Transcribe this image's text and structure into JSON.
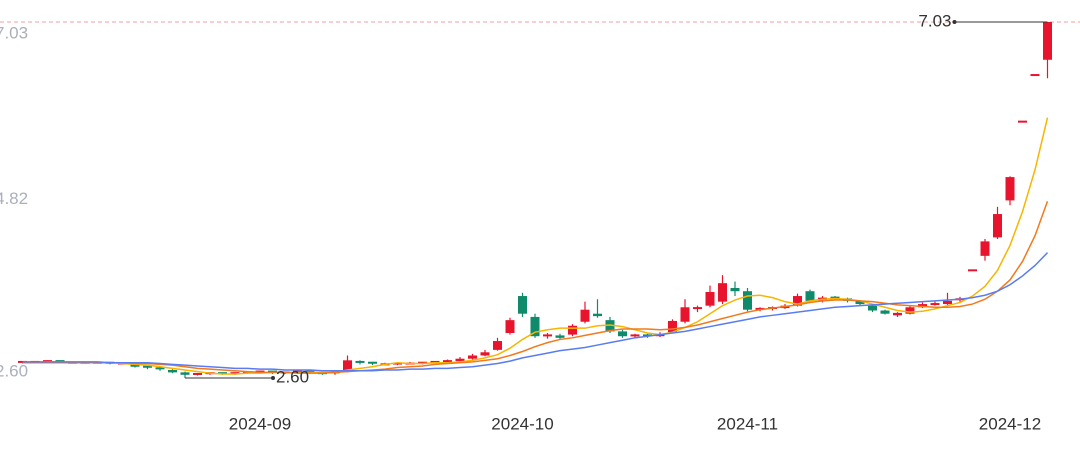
{
  "chart_data": {
    "type": "candlestick",
    "categories": [
      null,
      null,
      null,
      null,
      null,
      null,
      null,
      null,
      null,
      null,
      null,
      null,
      null,
      null,
      null,
      null,
      null,
      null,
      null,
      "2024-09",
      null,
      null,
      null,
      null,
      null,
      null,
      null,
      null,
      null,
      null,
      null,
      null,
      null,
      null,
      null,
      null,
      null,
      null,
      null,
      null,
      "2024-10",
      null,
      null,
      null,
      null,
      null,
      null,
      null,
      null,
      null,
      null,
      null,
      null,
      null,
      null,
      null,
      null,
      null,
      "2024-11",
      null,
      null,
      null,
      null,
      null,
      null,
      null,
      null,
      null,
      null,
      null,
      null,
      null,
      null,
      null,
      null,
      null,
      null,
      null,
      null,
      "2024-12",
      null,
      null,
      null
    ],
    "candles": [
      [
        2.79,
        2.81,
        2.78,
        2.8
      ],
      [
        2.8,
        2.81,
        2.79,
        2.8
      ],
      [
        2.8,
        2.82,
        2.79,
        2.81
      ],
      [
        2.81,
        2.82,
        2.79,
        2.79
      ],
      [
        2.79,
        2.8,
        2.78,
        2.78
      ],
      [
        2.78,
        2.8,
        2.78,
        2.79
      ],
      [
        2.79,
        2.8,
        2.78,
        2.79
      ],
      [
        2.79,
        2.8,
        2.77,
        2.78
      ],
      [
        2.78,
        2.79,
        2.77,
        2.78
      ],
      [
        2.78,
        2.78,
        2.73,
        2.74
      ],
      [
        2.74,
        2.75,
        2.71,
        2.72
      ],
      [
        2.72,
        2.73,
        2.69,
        2.7
      ],
      [
        2.7,
        2.71,
        2.66,
        2.67
      ],
      [
        2.67,
        2.68,
        2.6,
        2.64
      ],
      [
        2.64,
        2.66,
        2.63,
        2.65
      ],
      [
        2.65,
        2.67,
        2.64,
        2.66
      ],
      [
        2.66,
        2.67,
        2.64,
        2.65
      ],
      [
        2.65,
        2.67,
        2.64,
        2.66
      ],
      [
        2.66,
        2.68,
        2.65,
        2.67
      ],
      [
        2.67,
        2.69,
        2.66,
        2.68
      ],
      [
        2.68,
        2.69,
        2.65,
        2.66
      ],
      [
        2.66,
        2.68,
        2.65,
        2.67
      ],
      [
        2.67,
        2.7,
        2.66,
        2.68
      ],
      [
        2.68,
        2.69,
        2.65,
        2.66
      ],
      [
        2.66,
        2.67,
        2.64,
        2.65
      ],
      [
        2.65,
        2.68,
        2.64,
        2.67
      ],
      [
        2.68,
        2.88,
        2.67,
        2.82
      ],
      [
        2.8,
        2.82,
        2.77,
        2.79
      ],
      [
        2.79,
        2.8,
        2.76,
        2.77
      ],
      [
        2.77,
        2.79,
        2.76,
        2.77
      ],
      [
        2.77,
        2.79,
        2.76,
        2.78
      ],
      [
        2.78,
        2.8,
        2.77,
        2.78
      ],
      [
        2.78,
        2.8,
        2.77,
        2.79
      ],
      [
        2.79,
        2.81,
        2.78,
        2.8
      ],
      [
        2.8,
        2.83,
        2.79,
        2.81
      ],
      [
        2.81,
        2.86,
        2.8,
        2.84
      ],
      [
        2.84,
        2.9,
        2.83,
        2.88
      ],
      [
        2.88,
        2.95,
        2.87,
        2.92
      ],
      [
        2.95,
        3.1,
        2.94,
        3.06
      ],
      [
        3.16,
        3.35,
        3.14,
        3.32
      ],
      [
        3.62,
        3.66,
        3.36,
        3.4
      ],
      [
        3.36,
        3.4,
        3.1,
        3.12
      ],
      [
        3.12,
        3.16,
        3.09,
        3.13
      ],
      [
        3.13,
        3.15,
        3.08,
        3.1
      ],
      [
        3.14,
        3.27,
        3.12,
        3.25
      ],
      [
        3.3,
        3.55,
        3.28,
        3.45
      ],
      [
        3.4,
        3.58,
        3.35,
        3.37
      ],
      [
        3.32,
        3.36,
        3.16,
        3.18
      ],
      [
        3.18,
        3.2,
        3.1,
        3.12
      ],
      [
        3.12,
        3.15,
        3.1,
        3.13
      ],
      [
        3.13,
        3.15,
        3.1,
        3.12
      ],
      [
        3.12,
        3.17,
        3.11,
        3.15
      ],
      [
        3.17,
        3.33,
        3.16,
        3.31
      ],
      [
        3.3,
        3.58,
        3.28,
        3.48
      ],
      [
        3.45,
        3.5,
        3.42,
        3.47
      ],
      [
        3.5,
        3.75,
        3.48,
        3.67
      ],
      [
        3.55,
        3.88,
        3.52,
        3.78
      ],
      [
        3.72,
        3.8,
        3.62,
        3.68
      ],
      [
        3.68,
        3.72,
        3.43,
        3.45
      ],
      [
        3.45,
        3.48,
        3.43,
        3.46
      ],
      [
        3.46,
        3.49,
        3.44,
        3.47
      ],
      [
        3.47,
        3.52,
        3.46,
        3.5
      ],
      [
        3.5,
        3.65,
        3.49,
        3.62
      ],
      [
        3.68,
        3.7,
        3.55,
        3.56
      ],
      [
        3.56,
        3.62,
        3.54,
        3.6
      ],
      [
        3.6,
        3.62,
        3.57,
        3.59
      ],
      [
        3.59,
        3.6,
        3.54,
        3.56
      ],
      [
        3.56,
        3.57,
        3.5,
        3.52
      ],
      [
        3.5,
        3.51,
        3.42,
        3.44
      ],
      [
        3.44,
        3.45,
        3.39,
        3.4
      ],
      [
        3.38,
        3.42,
        3.36,
        3.41
      ],
      [
        3.4,
        3.5,
        3.39,
        3.48
      ],
      [
        3.48,
        3.54,
        3.47,
        3.52
      ],
      [
        3.52,
        3.55,
        3.5,
        3.52
      ],
      [
        3.52,
        3.66,
        3.51,
        3.56
      ],
      [
        3.56,
        3.61,
        3.55,
        3.58
      ],
      [
        3.94,
        3.94,
        3.94,
        3.94
      ],
      [
        4.12,
        4.33,
        4.06,
        4.3
      ],
      [
        4.35,
        4.73,
        4.33,
        4.64
      ],
      [
        4.81,
        5.11,
        4.75,
        5.1
      ],
      [
        5.79,
        5.79,
        5.79,
        5.79
      ],
      [
        6.37,
        6.37,
        6.37,
        6.37
      ],
      [
        6.56,
        7.03,
        6.33,
        7.03
      ]
    ],
    "up_color": "#e8142e",
    "down_color": "#0f8a6a",
    "series": [
      {
        "color": "#f7b500",
        "values": [
          2.79,
          2.79,
          2.8,
          2.8,
          2.79,
          2.79,
          2.79,
          2.79,
          2.78,
          2.77,
          2.76,
          2.74,
          2.72,
          2.7,
          2.68,
          2.66,
          2.65,
          2.65,
          2.66,
          2.66,
          2.67,
          2.67,
          2.67,
          2.67,
          2.67,
          2.67,
          2.7,
          2.72,
          2.74,
          2.77,
          2.79,
          2.78,
          2.78,
          2.79,
          2.79,
          2.8,
          2.82,
          2.85,
          2.89,
          2.97,
          3.08,
          3.17,
          3.2,
          3.22,
          3.22,
          3.22,
          3.25,
          3.26,
          3.24,
          3.2,
          3.16,
          3.14,
          3.17,
          3.23,
          3.3,
          3.4,
          3.5,
          3.57,
          3.62,
          3.63,
          3.6,
          3.55,
          3.52,
          3.56,
          3.58,
          3.59,
          3.58,
          3.56,
          3.52,
          3.48,
          3.44,
          3.42,
          3.43,
          3.46,
          3.5,
          3.54,
          3.62,
          3.74,
          3.94,
          4.25,
          4.67,
          5.19,
          5.84
        ]
      },
      {
        "color": "#f07a1e",
        "values": [
          2.79,
          2.79,
          2.79,
          2.79,
          2.79,
          2.79,
          2.79,
          2.79,
          2.79,
          2.78,
          2.78,
          2.77,
          2.76,
          2.74,
          2.72,
          2.71,
          2.7,
          2.69,
          2.68,
          2.67,
          2.67,
          2.67,
          2.66,
          2.66,
          2.66,
          2.67,
          2.68,
          2.69,
          2.7,
          2.71,
          2.73,
          2.74,
          2.75,
          2.77,
          2.78,
          2.79,
          2.8,
          2.82,
          2.84,
          2.88,
          2.93,
          2.99,
          3.04,
          3.08,
          3.1,
          3.13,
          3.16,
          3.19,
          3.21,
          3.21,
          3.21,
          3.2,
          3.21,
          3.23,
          3.26,
          3.3,
          3.34,
          3.38,
          3.42,
          3.45,
          3.47,
          3.49,
          3.51,
          3.54,
          3.56,
          3.57,
          3.57,
          3.56,
          3.55,
          3.53,
          3.51,
          3.5,
          3.49,
          3.48,
          3.48,
          3.49,
          3.52,
          3.58,
          3.68,
          3.82,
          4.05,
          4.37,
          4.8
        ]
      },
      {
        "color": "#5a7cf2",
        "values": [
          2.8,
          2.8,
          2.8,
          2.8,
          2.8,
          2.8,
          2.8,
          2.79,
          2.79,
          2.79,
          2.79,
          2.78,
          2.77,
          2.76,
          2.75,
          2.74,
          2.73,
          2.72,
          2.72,
          2.71,
          2.71,
          2.7,
          2.7,
          2.7,
          2.69,
          2.69,
          2.69,
          2.69,
          2.69,
          2.7,
          2.7,
          2.71,
          2.71,
          2.72,
          2.72,
          2.73,
          2.74,
          2.76,
          2.78,
          2.81,
          2.85,
          2.88,
          2.91,
          2.94,
          2.96,
          2.98,
          3.01,
          3.04,
          3.07,
          3.1,
          3.12,
          3.14,
          3.16,
          3.18,
          3.21,
          3.24,
          3.27,
          3.3,
          3.33,
          3.36,
          3.38,
          3.4,
          3.42,
          3.44,
          3.46,
          3.48,
          3.49,
          3.5,
          3.51,
          3.52,
          3.53,
          3.54,
          3.55,
          3.56,
          3.57,
          3.58,
          3.6,
          3.63,
          3.68,
          3.76,
          3.87,
          4.0,
          4.16
        ]
      }
    ],
    "ylim": [
      2.6,
      7.03
    ],
    "yticks": [
      {
        "value": 2.6,
        "label": "2.60"
      },
      4.82,
      7.03
    ],
    "max_min": [
      7.03,
      2.6
    ],
    "max_min_labels": [
      "7.03",
      "2.60"
    ]
  }
}
